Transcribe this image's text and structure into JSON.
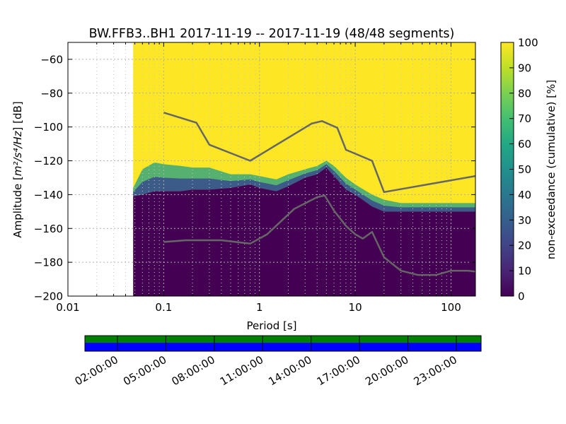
{
  "chart_data": {
    "type": "heatmap",
    "title": "BW.FFB3..BH1   2017-11-19 -- 2017-11-19  (48/48 segments)",
    "xlabel": "Period [s]",
    "ylabel_prefix": "Amplitude [",
    "ylabel_units": "m²/s⁴/Hz",
    "ylabel_suffix": "] [dB]",
    "x_scale": "log",
    "xlim": [
      0.01,
      180
    ],
    "ylim": [
      -200,
      -50
    ],
    "x_ticks": [
      {
        "value": 0.01,
        "label": "0.01"
      },
      {
        "value": 0.1,
        "label": "0.1"
      },
      {
        "value": 1,
        "label": "1"
      },
      {
        "value": 10,
        "label": "10"
      },
      {
        "value": 100,
        "label": "100"
      }
    ],
    "y_ticks": [
      {
        "value": -60,
        "label": "−60"
      },
      {
        "value": -80,
        "label": "−80"
      },
      {
        "value": -100,
        "label": "−100"
      },
      {
        "value": -120,
        "label": "−120"
      },
      {
        "value": -140,
        "label": "−140"
      },
      {
        "value": -160,
        "label": "−160"
      },
      {
        "value": -180,
        "label": "−180"
      },
      {
        "value": -200,
        "label": "−200"
      }
    ],
    "grid": true,
    "data_start_period": 0.048,
    "colorbar": {
      "label": "non-exceedance (cumulative) [%]",
      "range": [
        0,
        100
      ],
      "ticks": [
        "0",
        "10",
        "20",
        "30",
        "40",
        "50",
        "60",
        "70",
        "80",
        "90",
        "100"
      ]
    },
    "density_band": {
      "x": [
        0.048,
        0.06,
        0.08,
        0.1,
        0.15,
        0.2,
        0.3,
        0.5,
        0.8,
        1,
        1.5,
        2,
        3,
        4,
        5,
        6,
        8,
        10,
        15,
        20,
        30,
        50,
        100,
        180
      ],
      "upper": [
        -136,
        -125,
        -121,
        -122,
        -123,
        -124,
        -124,
        -128,
        -128,
        -129,
        -131,
        -128,
        -125,
        -123,
        -120,
        -123,
        -130,
        -134,
        -140,
        -143,
        -145,
        -145,
        -145,
        -145
      ],
      "lower": [
        -141,
        -140,
        -138,
        -138,
        -138,
        -137,
        -137,
        -136,
        -134,
        -136,
        -138,
        -135,
        -130,
        -128,
        -124,
        -129,
        -137,
        -140,
        -147,
        -150,
        -150,
        -150,
        -150,
        -150
      ]
    },
    "series": [
      {
        "name": "max",
        "x": [
          0.1,
          0.22,
          0.3,
          0.8,
          3.5,
          4.5,
          6.5,
          8,
          15,
          20,
          180
        ],
        "y": [
          -91.5,
          -97.5,
          -110.5,
          -120,
          -98,
          -96.5,
          -100.5,
          -113.5,
          -120,
          -138.5,
          -129
        ]
      },
      {
        "name": "min",
        "x": [
          0.1,
          0.17,
          0.4,
          0.8,
          1.2,
          2.3,
          4,
          4.8,
          6,
          8,
          10,
          12,
          15,
          20,
          30,
          45,
          70,
          100,
          150,
          180
        ],
        "y": [
          -168,
          -167,
          -167,
          -169,
          -163.5,
          -148.5,
          -141.5,
          -140.5,
          -149.5,
          -158.5,
          -163.5,
          -166,
          -162,
          -177,
          -185,
          -187.5,
          -187.5,
          -185,
          -185,
          -185.5
        ]
      }
    ],
    "time_axis": {
      "labels": [
        "02:00:00",
        "05:00:00",
        "08:00:00",
        "11:00:00",
        "14:00:00",
        "17:00:00",
        "20:00:00",
        "23:00:00"
      ],
      "status_colors": {
        "top": "#008000",
        "bottom": "#0000ff"
      }
    }
  }
}
